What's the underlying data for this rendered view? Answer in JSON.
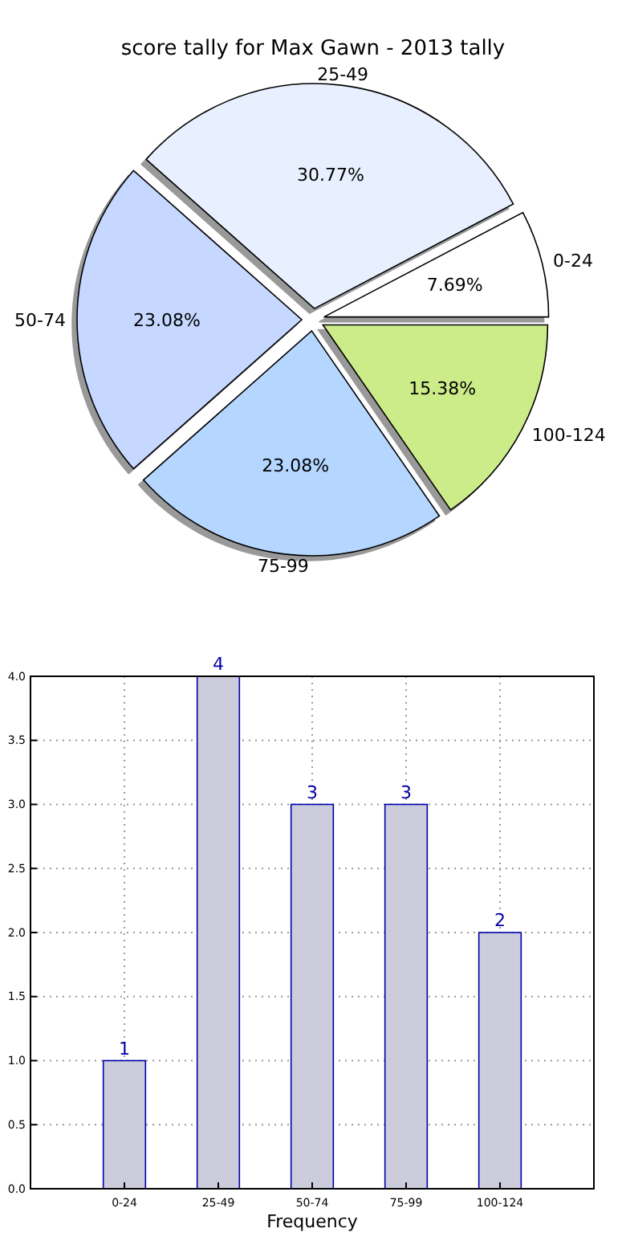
{
  "chart_data": [
    {
      "type": "pie",
      "title": "score tally for Max Gawn - 2013 tally",
      "categories": [
        "0-24",
        "25-49",
        "50-74",
        "75-99",
        "100-124"
      ],
      "values": [
        7.69,
        30.77,
        23.08,
        23.08,
        15.38
      ],
      "value_labels": [
        "7.69%",
        "30.77%",
        "23.08%",
        "23.08%",
        "15.38%"
      ],
      "colors": [
        "#ffffff",
        "#e8f0ff",
        "#c6d8ff",
        "#b4d6ff",
        "#ccec8a"
      ]
    },
    {
      "type": "bar",
      "categories": [
        "0-24",
        "25-49",
        "50-74",
        "75-99",
        "100-124"
      ],
      "values": [
        1,
        4,
        3,
        3,
        2
      ],
      "color": "#ccccdd",
      "xlabel": "Frequency",
      "ylim": [
        0,
        4
      ],
      "yticks": [
        {
          "value": 0,
          "label": "0.0"
        },
        {
          "value": 0.5,
          "label": "0.5"
        },
        {
          "value": 1,
          "label": "1.0"
        },
        {
          "value": 1.5,
          "label": "1.5"
        },
        {
          "value": 2,
          "label": "2.0"
        },
        {
          "value": 2.5,
          "label": "2.5"
        },
        {
          "value": 3,
          "label": "3.0"
        },
        {
          "value": 3.5,
          "label": "3.5"
        },
        {
          "value": 4,
          "label": "4.0"
        }
      ],
      "grid": true,
      "data_labels": true
    }
  ]
}
